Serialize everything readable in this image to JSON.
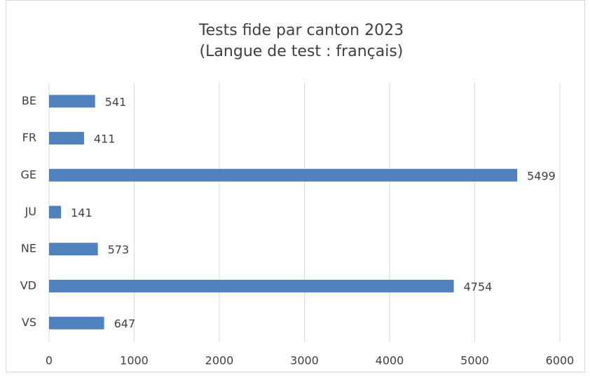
{
  "chart_data": {
    "type": "barh",
    "title": "Tests fide par canton 2023",
    "subtitle": "(Langue de test : français)",
    "categories": [
      "BE",
      "FR",
      "GE",
      "JU",
      "NE",
      "VD",
      "VS"
    ],
    "values": [
      541,
      411,
      5499,
      141,
      573,
      4754,
      647
    ],
    "color": "#4f81bd",
    "xlim": [
      0,
      6000
    ],
    "xticks": [
      0,
      1000,
      2000,
      3000,
      4000,
      5000,
      6000
    ],
    "grid": true
  }
}
